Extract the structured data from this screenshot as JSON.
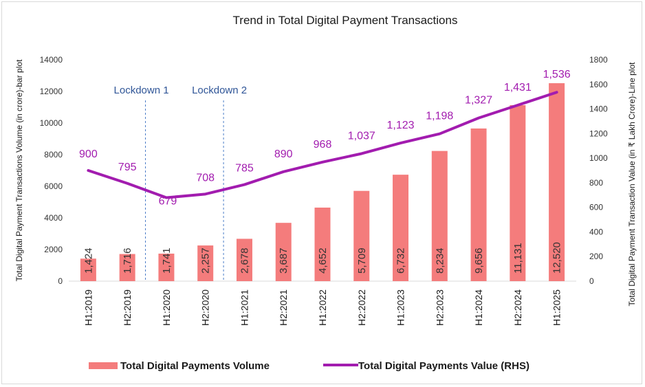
{
  "chart_data": {
    "type": "bar",
    "title": "Trend in Total Digital Payment Transactions",
    "categories": [
      "H1:2019",
      "H2:2019",
      "H1:2020",
      "H2:2020",
      "H1:2021",
      "H2:2021",
      "H1:2022",
      "H2:2022",
      "H1:2023",
      "H2:2023",
      "H1:2024",
      "H2:2024",
      "H1:2025"
    ],
    "series": [
      {
        "name": "Total Digital Payments  Volume",
        "type": "bar",
        "axis": "left",
        "color": "#f47c7c",
        "values": [
          1424,
          1716,
          1741,
          2257,
          2678,
          3687,
          4652,
          5709,
          6732,
          8234,
          9656,
          11131,
          12520
        ],
        "labels": [
          "1,424",
          "1,716",
          "1,741",
          "2,257",
          "2,678",
          "3,687",
          "4,652",
          "5,709",
          "6,732",
          "8,234",
          "9,656",
          "11,131",
          "12,520"
        ]
      },
      {
        "name": "Total Digital Payments   Value (RHS)",
        "type": "line",
        "axis": "right",
        "color": "#a21caf",
        "values": [
          900,
          795,
          679,
          708,
          785,
          890,
          968,
          1037,
          1123,
          1198,
          1327,
          1431,
          1536
        ],
        "labels": [
          "900",
          "795",
          "679",
          "708",
          "785",
          "890",
          "968",
          "1,037",
          "1,123",
          "1,198",
          "1,327",
          "1,431",
          "1,536"
        ]
      }
    ],
    "ylabel": "Total Digital Payment Transactions Volume (in crore)-bar plot",
    "y2label": "Total Digital Payment Transaction  Value (in ₹ Lakh Crore)-Line plot",
    "ylim": [
      0,
      14000
    ],
    "y2lim": [
      0,
      1800
    ],
    "yticks": [
      "0",
      "2000",
      "4000",
      "6000",
      "8000",
      "10000",
      "12000",
      "14000"
    ],
    "y2ticks": [
      "0",
      "200",
      "400",
      "600",
      "800",
      "1000",
      "1200",
      "1400",
      "1600",
      "1800"
    ],
    "annotations": [
      {
        "text": "Lockdown 1",
        "category": "H1:2020"
      },
      {
        "text": "Lockdown 2",
        "category": "H1:2021"
      }
    ],
    "grid": false,
    "legend_position": "bottom"
  }
}
